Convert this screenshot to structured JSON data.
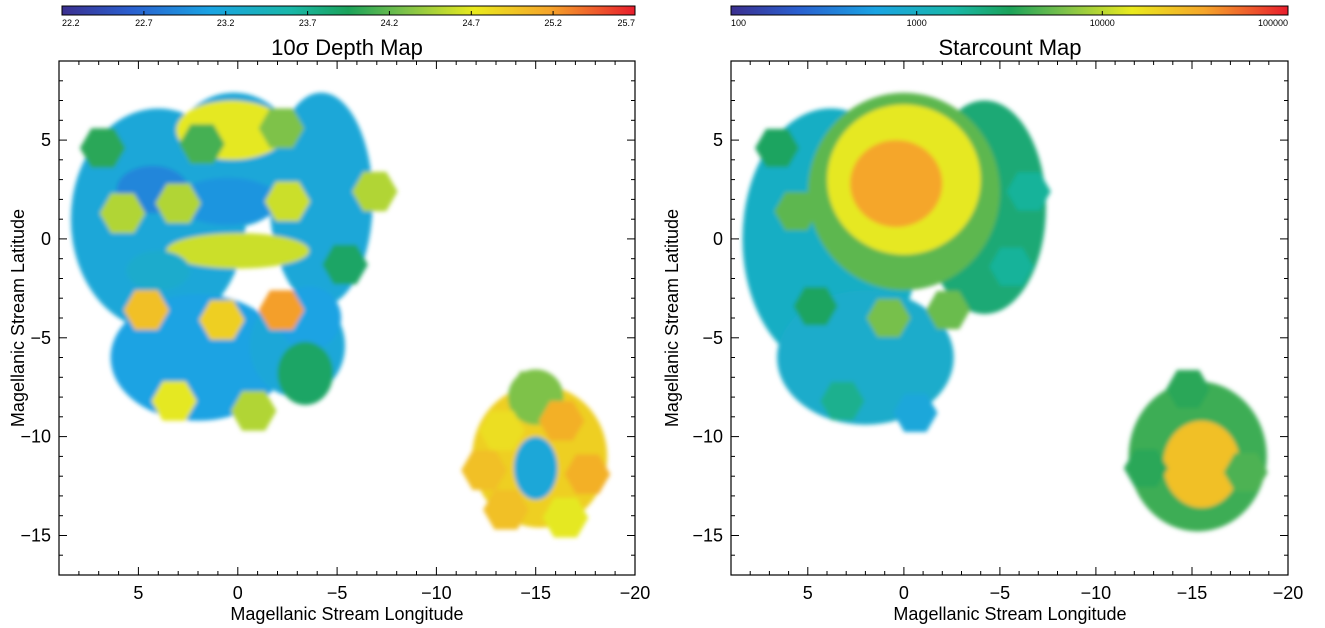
{
  "chart_data": [
    {
      "type": "heatmap",
      "title": "10σ Depth Map",
      "xlabel": "Magellanic Stream Longitude",
      "ylabel": "Magellanic Stream Latitude",
      "xlim": [
        9,
        -20
      ],
      "ylim": [
        -17,
        9
      ],
      "x_ticks": [
        5,
        0,
        -5,
        -10,
        -15,
        -20
      ],
      "x_tick_labels": [
        "5",
        "0",
        "−5",
        "−10",
        "−15",
        "−20"
      ],
      "y_ticks": [
        5,
        0,
        -5,
        -10,
        -15
      ],
      "y_tick_labels": [
        "5",
        "0",
        "−5",
        "−10",
        "−15"
      ],
      "colorbar": {
        "scale": "linear",
        "range": [
          22.2,
          25.7
        ],
        "ticks": [
          22.2,
          22.7,
          23.2,
          23.7,
          24.2,
          24.7,
          25.2,
          25.7
        ],
        "tick_labels": [
          "22.2",
          "22.7",
          "23.2",
          "23.7",
          "24.2",
          "24.7",
          "25.2",
          "25.7"
        ]
      },
      "regions": [
        {
          "x": 4.0,
          "y": 1.0,
          "rx": 4.4,
          "ry": 5.6,
          "value": 23.2
        },
        {
          "x": 0.2,
          "y": 4.0,
          "rx": 3.2,
          "ry": 3.4,
          "value": 23.2
        },
        {
          "x": -4.2,
          "y": 2.0,
          "rx": 2.6,
          "ry": 5.4,
          "value": 23.2
        },
        {
          "x": 2.0,
          "y": -6.0,
          "rx": 4.4,
          "ry": 3.2,
          "value": 23.1
        },
        {
          "x": -3.0,
          "y": -5.4,
          "rx": 2.4,
          "ry": 2.6,
          "value": 23.2
        },
        {
          "x": 0.3,
          "y": 5.5,
          "rx": 2.8,
          "ry": 1.5,
          "value": 24.7
        },
        {
          "x": 4.3,
          "y": 2.5,
          "rx": 1.8,
          "ry": 1.2,
          "value": 22.9
        },
        {
          "x": 0.5,
          "y": 1.9,
          "rx": 2.6,
          "ry": 1.2,
          "value": 23.0
        },
        {
          "x": 0.0,
          "y": -0.6,
          "rx": 3.6,
          "ry": 0.9,
          "value": 24.6
        },
        {
          "x": 4.0,
          "y": -1.6,
          "rx": 1.6,
          "ry": 1.0,
          "value": 23.3
        },
        {
          "x": -3.6,
          "y": -4.0,
          "rx": 1.6,
          "ry": 1.6,
          "value": 23.1
        },
        {
          "x": -3.4,
          "y": -6.8,
          "rx": 1.4,
          "ry": 1.6,
          "value": 23.9
        },
        {
          "x": -15.2,
          "y": -11.0,
          "rx": 3.4,
          "ry": 3.6,
          "value": 24.9
        },
        {
          "x": -15.0,
          "y": -8.0,
          "rx": 1.4,
          "ry": 1.4,
          "value": 24.3
        },
        {
          "x": -15.0,
          "y": -11.6,
          "rx": 1.1,
          "ry": 1.6,
          "value": 23.2
        }
      ],
      "fields": [
        {
          "x": 6.8,
          "y": 4.6,
          "value": 24.0
        },
        {
          "x": 5.8,
          "y": 1.3,
          "value": 24.5
        },
        {
          "x": 3.0,
          "y": 1.8,
          "value": 24.5
        },
        {
          "x": -2.2,
          "y": 5.6,
          "value": 24.3
        },
        {
          "x": 1.8,
          "y": 4.8,
          "value": 24.1
        },
        {
          "x": -2.5,
          "y": 1.9,
          "value": 24.6
        },
        {
          "x": -6.9,
          "y": 2.4,
          "value": 24.5
        },
        {
          "x": -5.4,
          "y": -1.3,
          "value": 23.9
        },
        {
          "x": 4.6,
          "y": -3.6,
          "value": 25.0
        },
        {
          "x": 0.8,
          "y": -4.1,
          "value": 24.9
        },
        {
          "x": -2.2,
          "y": -3.6,
          "value": 25.2
        },
        {
          "x": 3.2,
          "y": -8.2,
          "value": 24.7
        },
        {
          "x": -0.8,
          "y": -8.7,
          "value": 24.5
        },
        {
          "x": -14.8,
          "y": -7.7,
          "value": 24.3
        },
        {
          "x": -13.3,
          "y": -9.7,
          "value": 24.8
        },
        {
          "x": -16.3,
          "y": -9.2,
          "value": 25.1
        },
        {
          "x": -12.4,
          "y": -11.7,
          "value": 25.0
        },
        {
          "x": -17.6,
          "y": -11.9,
          "value": 25.1
        },
        {
          "x": -13.5,
          "y": -13.7,
          "value": 25.0
        },
        {
          "x": -16.5,
          "y": -14.1,
          "value": 24.7
        }
      ]
    },
    {
      "type": "heatmap",
      "title": "Starcount Map",
      "xlabel": "Magellanic Stream Longitude",
      "ylabel": "Magellanic Stream Latitude",
      "xlim": [
        9,
        -20
      ],
      "ylim": [
        -17,
        9
      ],
      "x_ticks": [
        5,
        0,
        -5,
        -10,
        -15,
        -20
      ],
      "x_tick_labels": [
        "5",
        "0",
        "−5",
        "−10",
        "−15",
        "−20"
      ],
      "y_ticks": [
        5,
        0,
        -5,
        -10,
        -15
      ],
      "y_tick_labels": [
        "5",
        "0",
        "−5",
        "−10",
        "−15"
      ],
      "colorbar": {
        "scale": "log",
        "range": [
          100,
          100000
        ],
        "ticks": [
          100,
          1000,
          10000,
          100000
        ],
        "tick_labels": [
          "100",
          "1000",
          "10000",
          "100000"
        ]
      },
      "regions": [
        {
          "x": 3.8,
          "y": 0.0,
          "rx": 4.6,
          "ry": 6.6,
          "value": 1000
        },
        {
          "x": -4.2,
          "y": 1.6,
          "rx": 3.2,
          "ry": 5.4,
          "value": 2500
        },
        {
          "x": 2.0,
          "y": -6.0,
          "rx": 4.6,
          "ry": 3.4,
          "value": 900
        },
        {
          "x": 0.0,
          "y": 2.4,
          "rx": 5.0,
          "ry": 5.0,
          "value": 5000
        },
        {
          "x": 0.0,
          "y": 3.0,
          "rx": 4.0,
          "ry": 3.8,
          "value": 14000
        },
        {
          "x": 0.4,
          "y": 2.8,
          "rx": 2.4,
          "ry": 2.2,
          "value": 35000
        },
        {
          "x": -15.3,
          "y": -11.0,
          "rx": 3.6,
          "ry": 3.8,
          "value": 4000
        },
        {
          "x": -15.5,
          "y": -11.4,
          "rx": 2.0,
          "ry": 2.2,
          "value": 25000
        }
      ],
      "fields": [
        {
          "x": 6.6,
          "y": 4.6,
          "value": 3000
        },
        {
          "x": 5.6,
          "y": 1.4,
          "value": 5000
        },
        {
          "x": -6.5,
          "y": 2.4,
          "value": 1800
        },
        {
          "x": -5.6,
          "y": -1.4,
          "value": 1800
        },
        {
          "x": 4.6,
          "y": -3.4,
          "value": 3000
        },
        {
          "x": 0.8,
          "y": -4.0,
          "value": 6000
        },
        {
          "x": -2.3,
          "y": -3.6,
          "value": 5500
        },
        {
          "x": 3.2,
          "y": -8.2,
          "value": 2000
        },
        {
          "x": -0.6,
          "y": -8.8,
          "value": 700
        },
        {
          "x": -14.8,
          "y": -7.6,
          "value": 3500
        },
        {
          "x": -17.8,
          "y": -11.8,
          "value": 4500
        },
        {
          "x": -12.6,
          "y": -11.6,
          "value": 3500
        }
      ]
    }
  ]
}
